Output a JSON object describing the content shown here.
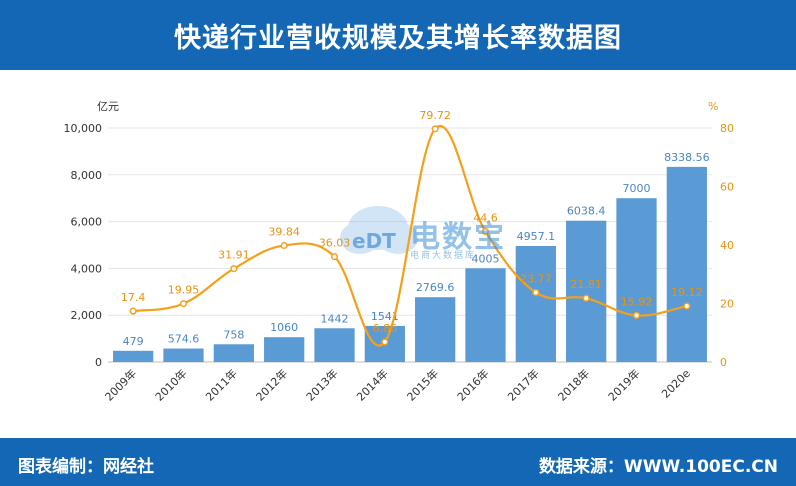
{
  "header": {
    "title": "快递行业营收规模及其增长率数据图"
  },
  "footer": {
    "left": "图表编制：网经社",
    "right": "数据来源：WWW.100EC.CN"
  },
  "watermark": {
    "logo": "eDT",
    "text": "电数宝",
    "sub": "电商大数据库"
  },
  "colors": {
    "header": "#1467b4",
    "bar": "#5b9bd5",
    "line": "#f5a01a",
    "bar_label": "#4a86c5",
    "line_label": "#e8930f"
  },
  "chart_data": {
    "type": "bar",
    "categories": [
      "2009年",
      "2010年",
      "2011年",
      "2012年",
      "2013年",
      "2014年",
      "2015年",
      "2016年",
      "2017年",
      "2018年",
      "2019年",
      "2020e"
    ],
    "y_left_unit": "亿元",
    "y_right_unit": "%",
    "ylim_left": [
      0,
      10000
    ],
    "yticks_left": [
      "0",
      "2,000",
      "4,000",
      "6,000",
      "8,000",
      "10,000"
    ],
    "ylim_right": [
      0,
      80
    ],
    "yticks_right": [
      "0",
      "20",
      "40",
      "60",
      "80"
    ],
    "series": [
      {
        "type": "bar",
        "axis": "left",
        "values": [
          479,
          574.6,
          758,
          1060,
          1442,
          1541,
          2769.6,
          4005,
          4957.1,
          6038.4,
          7000,
          8338.56
        ],
        "labels": [
          "479",
          "574.6",
          "758",
          "1060",
          "1442",
          "1541",
          "2769.6",
          "4005",
          "4957.1",
          "6038.4",
          "7000",
          "8338.56"
        ]
      },
      {
        "type": "line",
        "axis": "right",
        "values": [
          17.4,
          19.95,
          31.91,
          39.84,
          36.03,
          6.86,
          79.72,
          44.6,
          23.77,
          21.81,
          15.92,
          19.12
        ],
        "labels": [
          "17.4",
          "19.95",
          "31.91",
          "39.84",
          "36.03",
          "6.86",
          "79.72",
          "44.6",
          "23.77",
          "21.81",
          "15.92",
          "19.12"
        ]
      }
    ],
    "grid": true,
    "legend": "none"
  }
}
